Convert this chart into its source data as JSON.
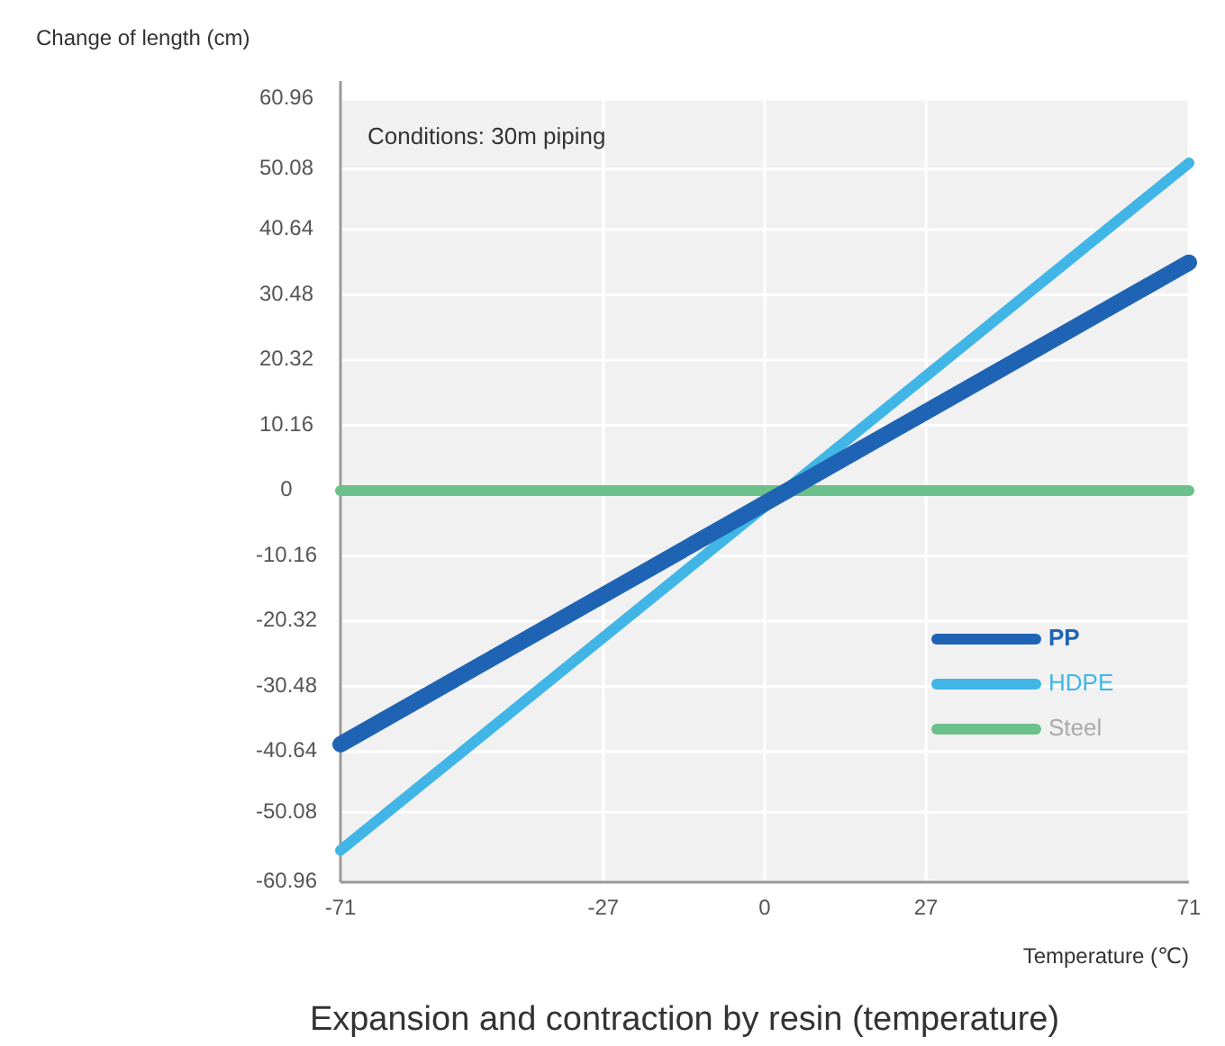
{
  "chart_data": {
    "type": "line",
    "title": "Expansion and contraction by resin (temperature)",
    "xlabel": "Temperature (℃)",
    "ylabel": "Change of length (cm)",
    "annotations": [
      "Conditions: 30m piping"
    ],
    "x": [
      -71,
      71
    ],
    "xlim": [
      -71,
      71
    ],
    "xticks": [
      -71,
      -27,
      0,
      27,
      71
    ],
    "ylim": [
      -60.96,
      60.96
    ],
    "yticks": [
      {
        "value": 60.96,
        "label": "60.96"
      },
      50.08,
      {
        "value": 40.64,
        "label": "40.64"
      },
      {
        "value": 30.48,
        "label": "30.48"
      },
      {
        "value": 20.32,
        "label": "20.32"
      },
      {
        "value": 10.16,
        "label": "10.16"
      },
      {
        "value": 0,
        "label": "0"
      },
      {
        "value": -10.16,
        "label": "-10.16"
      },
      {
        "value": -20.32,
        "label": "-20.32"
      },
      {
        "value": -30.48,
        "label": "-30.48"
      },
      {
        "value": -40.64,
        "label": "-40.64"
      },
      -50.08,
      {
        "value": -60.96,
        "label": "-60.96"
      }
    ],
    "grid": true,
    "legend": "bottom right",
    "marker": "none",
    "line_style": "solid",
    "series": [
      {
        "name": "PP",
        "color": "#1f64b4",
        "values": [
          -39.5,
          35.5
        ]
      },
      {
        "name": "HDPE",
        "color": "#41b6e6",
        "values": [
          -56,
          51
        ]
      },
      {
        "name": "Steel",
        "color": "#6cc08a",
        "values": [
          0,
          0
        ]
      }
    ]
  }
}
